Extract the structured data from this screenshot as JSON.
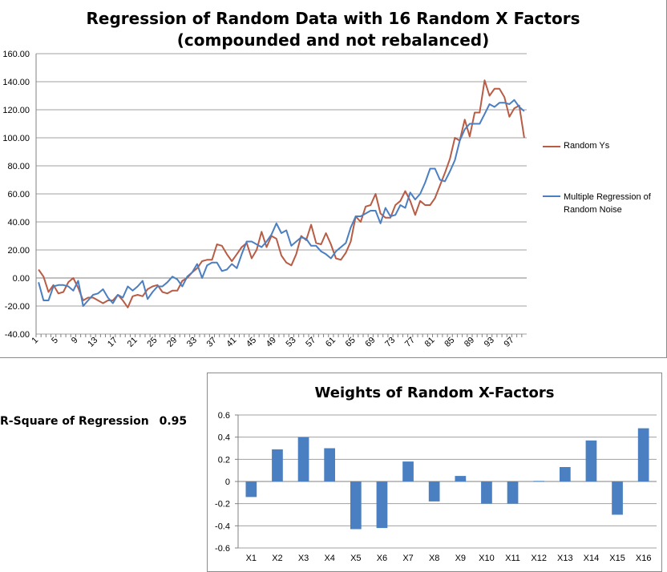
{
  "colors": {
    "random_ys": "#b85c45",
    "regression": "#4a7fc1",
    "bars": "#4a7fc1",
    "grid": "#a0a0a0"
  },
  "rsquare": {
    "label": "R-Square of Regression",
    "value": "0.95"
  },
  "chart_data": [
    {
      "type": "line",
      "title": "Regression of Random Data with 16 Random X Factors (compounded and not rebalanced)",
      "xlabel": "",
      "ylabel": "",
      "ylim": [
        -40,
        160
      ],
      "yticks": [
        "160.00",
        "140.00",
        "120.00",
        "100.00",
        "80.00",
        "60.00",
        "40.00",
        "20.00",
        "0.00",
        "-20.00",
        "-40.00"
      ],
      "xticks": [
        "1",
        "5",
        "9",
        "13",
        "17",
        "21",
        "25",
        "29",
        "33",
        "37",
        "41",
        "45",
        "49",
        "53",
        "57",
        "61",
        "65",
        "69",
        "73",
        "77",
        "81",
        "85",
        "89",
        "93",
        "97"
      ],
      "x_start": 1,
      "legend_position": "right",
      "series": [
        {
          "name": "Random Ys",
          "values": [
            6,
            1,
            -10,
            -5,
            -11,
            -10,
            -3,
            0,
            -7,
            -16,
            -14,
            -14,
            -16,
            -18,
            -16,
            -16,
            -12,
            -16,
            -21,
            -13,
            -12,
            -13,
            -8,
            -6,
            -5,
            -10,
            -11,
            -9,
            -9,
            -2,
            0,
            4,
            7,
            12,
            13,
            13,
            24,
            23,
            17,
            12,
            17,
            22,
            25,
            14,
            20,
            33,
            22,
            30,
            28,
            16,
            11,
            9,
            17,
            30,
            27,
            38,
            25,
            24,
            32,
            24,
            14,
            13,
            18,
            26,
            44,
            40,
            51,
            52,
            60,
            46,
            43,
            43,
            52,
            55,
            62,
            55,
            45,
            55,
            52,
            52,
            57,
            66,
            75,
            85,
            100,
            98,
            113,
            101,
            118,
            118,
            141,
            130,
            135,
            135,
            129,
            115,
            121,
            123,
            100
          ],
          "color": "#b85c45"
        },
        {
          "name": "Multiple Regression of Random Noise",
          "values": [
            -3,
            -16,
            -16,
            -6,
            -5,
            -5,
            -6,
            -9,
            -2,
            -20,
            -16,
            -12,
            -11,
            -8,
            -14,
            -18,
            -12,
            -14,
            -6,
            -9,
            -6,
            -2,
            -15,
            -10,
            -6,
            -6,
            -3,
            1,
            -1,
            -6,
            1,
            4,
            10,
            0,
            9,
            11,
            11,
            5,
            6,
            10,
            7,
            17,
            26,
            26,
            24,
            22,
            26,
            31,
            39,
            32,
            34,
            23,
            26,
            29,
            28,
            23,
            23,
            19,
            17,
            14,
            19,
            22,
            25,
            36,
            44,
            44,
            46,
            48,
            48,
            39,
            50,
            44,
            45,
            52,
            50,
            61,
            56,
            60,
            68,
            78,
            78,
            70,
            69,
            76,
            84,
            98,
            106,
            110,
            110,
            110,
            117,
            124,
            122,
            125,
            125,
            124,
            127,
            122,
            119
          ],
          "color": "#4a7fc1"
        }
      ]
    },
    {
      "type": "bar",
      "title": "Weights of Random X-Factors",
      "xlabel": "",
      "ylabel": "",
      "ylim": [
        -0.6,
        0.6
      ],
      "yticks": [
        "0.6",
        "0.4",
        "0.2",
        "0",
        "-0.2",
        "-0.4",
        "-0.6"
      ],
      "categories": [
        "X1",
        "X2",
        "X3",
        "X4",
        "X5",
        "X6",
        "X7",
        "X8",
        "X9",
        "X10",
        "X11",
        "X12",
        "X13",
        "X14",
        "X15",
        "X16"
      ],
      "series": [
        {
          "values": [
            -0.14,
            0.29,
            0.4,
            0.3,
            -0.43,
            -0.42,
            0.18,
            -0.18,
            0.05,
            -0.2,
            -0.2,
            0.005,
            0.13,
            0.37,
            -0.3,
            0.48
          ]
        }
      ]
    }
  ]
}
